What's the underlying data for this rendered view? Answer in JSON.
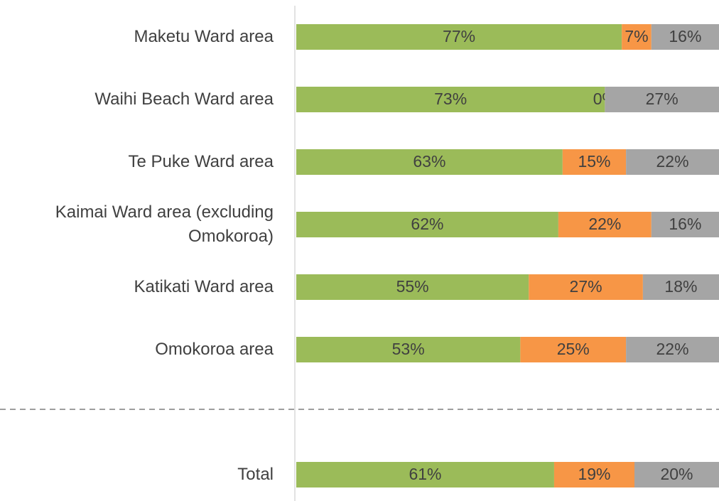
{
  "chart_data": {
    "type": "stacked-barh",
    "categories": [
      "Maketu Ward area",
      "Waihi Beach Ward area",
      "Te Puke Ward area",
      "Kaimai Ward area (excluding Omokoroa)",
      "Katikati Ward area",
      "Omokoroa area",
      null,
      "Total"
    ],
    "series": [
      {
        "color": "#9bbb59",
        "values": [
          77,
          73,
          63,
          62,
          55,
          53,
          null,
          61
        ],
        "value_labels": [
          "77%",
          "73%",
          "63%",
          "62%",
          "55%",
          "53%",
          null,
          "61%"
        ]
      },
      {
        "color": "#f79646",
        "values": [
          7,
          0,
          15,
          22,
          27,
          25,
          null,
          19
        ],
        "value_labels": [
          "7%",
          "0%",
          "15%",
          "22%",
          "27%",
          "25%",
          null,
          "19%"
        ]
      },
      {
        "color": "#a5a5a5",
        "values": [
          16,
          27,
          22,
          16,
          18,
          22,
          null,
          20
        ],
        "value_labels": [
          "16%",
          "27%",
          "22%",
          "16%",
          "18%",
          "22%",
          null,
          "20%"
        ]
      }
    ],
    "xlim": [
      0,
      100
    ]
  }
}
